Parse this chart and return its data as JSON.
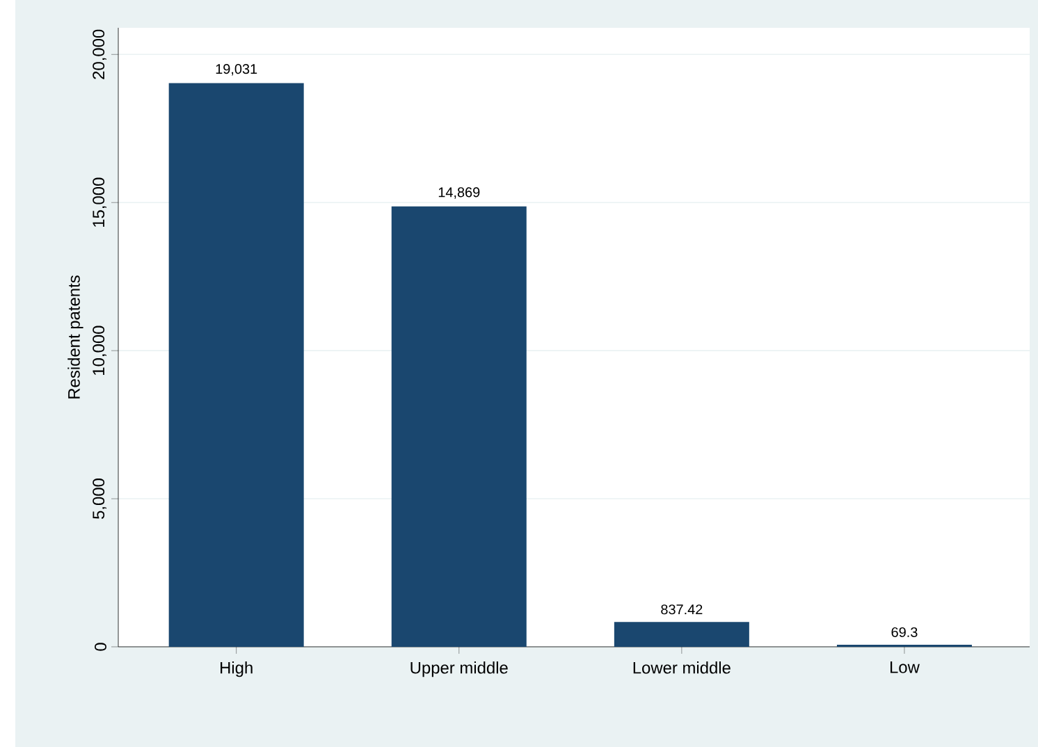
{
  "chart_data": {
    "type": "bar",
    "ylabel": "Resident patents",
    "categories": [
      "High",
      "Upper middle",
      "Lower middle",
      "Low"
    ],
    "values": [
      19031,
      14869,
      837.42,
      69.3
    ],
    "color": "#1a476f",
    "ylim": [
      0,
      20900
    ],
    "yticks": [
      {
        "value": 0,
        "label": "0"
      },
      {
        "value": 5000,
        "label": "5,000"
      },
      {
        "value": 10000,
        "label": "10,000"
      },
      {
        "value": 15000,
        "label": "15,000"
      },
      {
        "value": 20000,
        "label": "20,000"
      }
    ],
    "value_labels": [
      "19,031",
      "14,869",
      "837.42",
      "69.3"
    ],
    "grid": "y"
  }
}
